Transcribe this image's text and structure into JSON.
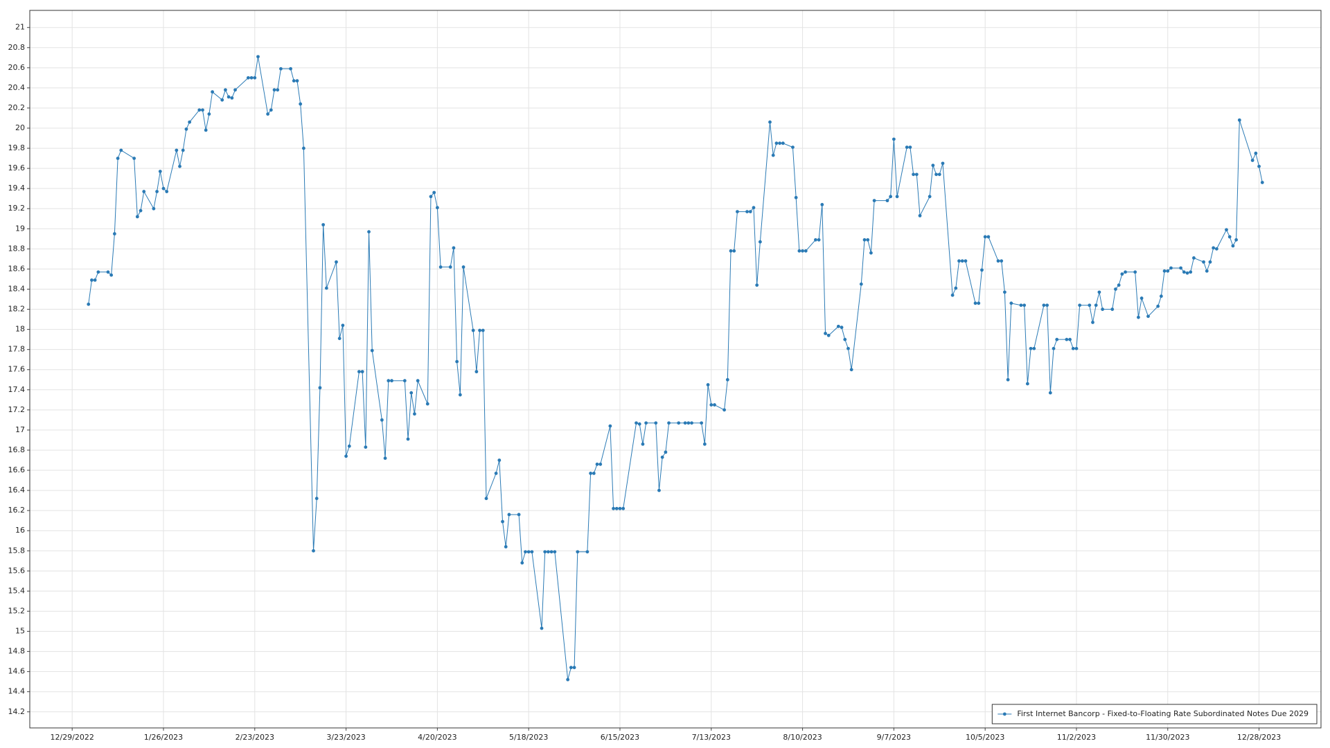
{
  "chart_data": {
    "type": "line",
    "x": [
      "1/3/2023",
      "1/4/2023",
      "1/5/2023",
      "1/6/2023",
      "1/9/2023",
      "1/10/2023",
      "1/11/2023",
      "1/12/2023",
      "1/13/2023",
      "1/17/2023",
      "1/18/2023",
      "1/19/2023",
      "1/20/2023",
      "1/23/2023",
      "1/24/2023",
      "1/25/2023",
      "1/26/2023",
      "1/27/2023",
      "1/30/2023",
      "1/31/2023",
      "2/1/2023",
      "2/2/2023",
      "2/3/2023",
      "2/6/2023",
      "2/7/2023",
      "2/8/2023",
      "2/9/2023",
      "2/10/2023",
      "2/13/2023",
      "2/14/2023",
      "2/15/2023",
      "2/16/2023",
      "2/17/2023",
      "2/21/2023",
      "2/22/2023",
      "2/23/2023",
      "2/24/2023",
      "2/27/2023",
      "2/28/2023",
      "3/1/2023",
      "3/2/2023",
      "3/3/2023",
      "3/6/2023",
      "3/7/2023",
      "3/8/2023",
      "3/9/2023",
      "3/10/2023",
      "3/13/2023",
      "3/14/2023",
      "3/15/2023",
      "3/16/2023",
      "3/17/2023",
      "3/20/2023",
      "3/21/2023",
      "3/22/2023",
      "3/23/2023",
      "3/24/2023",
      "3/27/2023",
      "3/28/2023",
      "3/29/2023",
      "3/30/2023",
      "3/31/2023",
      "4/3/2023",
      "4/4/2023",
      "4/5/2023",
      "4/6/2023",
      "4/10/2023",
      "4/11/2023",
      "4/12/2023",
      "4/13/2023",
      "4/14/2023",
      "4/17/2023",
      "4/18/2023",
      "4/19/2023",
      "4/20/2023",
      "4/21/2023",
      "4/24/2023",
      "4/25/2023",
      "4/26/2023",
      "4/27/2023",
      "4/28/2023",
      "5/1/2023",
      "5/2/2023",
      "5/3/2023",
      "5/4/2023",
      "5/5/2023",
      "5/8/2023",
      "5/9/2023",
      "5/10/2023",
      "5/11/2023",
      "5/12/2023",
      "5/15/2023",
      "5/16/2023",
      "5/17/2023",
      "5/18/2023",
      "5/19/2023",
      "5/22/2023",
      "5/23/2023",
      "5/24/2023",
      "5/25/2023",
      "5/26/2023",
      "5/30/2023",
      "5/31/2023",
      "6/1/2023",
      "6/2/2023",
      "6/5/2023",
      "6/6/2023",
      "6/7/2023",
      "6/8/2023",
      "6/9/2023",
      "6/12/2023",
      "6/13/2023",
      "6/14/2023",
      "6/15/2023",
      "6/16/2023",
      "6/20/2023",
      "6/21/2023",
      "6/22/2023",
      "6/23/2023",
      "6/26/2023",
      "6/27/2023",
      "6/28/2023",
      "6/29/2023",
      "6/30/2023",
      "7/3/2023",
      "7/5/2023",
      "7/6/2023",
      "7/7/2023",
      "7/10/2023",
      "7/11/2023",
      "7/12/2023",
      "7/13/2023",
      "7/14/2023",
      "7/17/2023",
      "7/18/2023",
      "7/19/2023",
      "7/20/2023",
      "7/21/2023",
      "7/24/2023",
      "7/25/2023",
      "7/26/2023",
      "7/27/2023",
      "7/28/2023",
      "7/31/2023",
      "8/1/2023",
      "8/2/2023",
      "8/3/2023",
      "8/4/2023",
      "8/7/2023",
      "8/8/2023",
      "8/9/2023",
      "8/10/2023",
      "8/11/2023",
      "8/14/2023",
      "8/15/2023",
      "8/16/2023",
      "8/17/2023",
      "8/18/2023",
      "8/21/2023",
      "8/22/2023",
      "8/23/2023",
      "8/24/2023",
      "8/25/2023",
      "8/28/2023",
      "8/29/2023",
      "8/30/2023",
      "8/31/2023",
      "9/1/2023",
      "9/5/2023",
      "9/6/2023",
      "9/7/2023",
      "9/8/2023",
      "9/11/2023",
      "9/12/2023",
      "9/13/2023",
      "9/14/2023",
      "9/15/2023",
      "9/18/2023",
      "9/19/2023",
      "9/20/2023",
      "9/21/2023",
      "9/22/2023",
      "9/25/2023",
      "9/26/2023",
      "9/27/2023",
      "9/28/2023",
      "9/29/2023",
      "10/2/2023",
      "10/3/2023",
      "10/4/2023",
      "10/5/2023",
      "10/6/2023",
      "10/9/2023",
      "10/10/2023",
      "10/11/2023",
      "10/12/2023",
      "10/13/2023",
      "10/16/2023",
      "10/17/2023",
      "10/18/2023",
      "10/19/2023",
      "10/20/2023",
      "10/23/2023",
      "10/24/2023",
      "10/25/2023",
      "10/26/2023",
      "10/27/2023",
      "10/30/2023",
      "10/31/2023",
      "11/1/2023",
      "11/2/2023",
      "11/3/2023",
      "11/6/2023",
      "11/7/2023",
      "11/8/2023",
      "11/9/2023",
      "11/10/2023",
      "11/13/2023",
      "11/14/2023",
      "11/15/2023",
      "11/16/2023",
      "11/17/2023",
      "11/20/2023",
      "11/21/2023",
      "11/22/2023",
      "11/24/2023",
      "11/27/2023",
      "11/28/2023",
      "11/29/2023",
      "11/30/2023",
      "12/1/2023",
      "12/4/2023",
      "12/5/2023",
      "12/6/2023",
      "12/7/2023",
      "12/8/2023",
      "12/11/2023",
      "12/12/2023",
      "12/13/2023",
      "12/14/2023",
      "12/15/2023",
      "12/18/2023",
      "12/19/2023",
      "12/20/2023",
      "12/21/2023",
      "12/22/2023",
      "12/26/2023",
      "12/27/2023",
      "12/28/2023",
      "12/29/2023"
    ],
    "series": [
      {
        "name": "First Internet Bancorp - Fixed-to-Floating Rate Subordinated Notes Due 2029",
        "color": "#2a7ab5",
        "values": [
          18.25,
          18.49,
          18.49,
          18.57,
          18.57,
          18.54,
          18.95,
          19.7,
          19.78,
          19.7,
          19.12,
          19.18,
          19.37,
          19.2,
          19.37,
          19.57,
          19.4,
          19.37,
          19.78,
          19.62,
          19.78,
          19.99,
          20.06,
          20.18,
          20.18,
          19.98,
          20.14,
          20.36,
          20.28,
          20.38,
          20.31,
          20.3,
          20.38,
          20.5,
          20.5,
          20.5,
          20.71,
          20.14,
          20.18,
          20.38,
          20.38,
          20.59,
          20.59,
          20.47,
          20.47,
          20.24,
          19.8,
          15.8,
          16.32,
          17.42,
          19.04,
          18.41,
          18.67,
          17.91,
          18.04,
          16.74,
          16.84,
          17.58,
          17.58,
          16.83,
          18.97,
          17.79,
          17.1,
          16.72,
          17.49,
          17.49,
          17.49,
          16.91,
          17.37,
          17.16,
          17.49,
          17.26,
          19.32,
          19.36,
          19.21,
          18.62,
          18.62,
          18.81,
          17.68,
          17.35,
          18.62,
          17.99,
          17.58,
          17.99,
          17.99,
          16.32,
          16.57,
          16.7,
          16.09,
          15.84,
          16.16,
          16.16,
          15.68,
          15.79,
          15.79,
          15.79,
          15.03,
          15.79,
          15.79,
          15.79,
          15.79,
          14.52,
          14.64,
          14.64,
          15.79,
          15.79,
          16.57,
          16.57,
          16.66,
          16.66,
          17.04,
          16.22,
          16.22,
          16.22,
          16.22,
          17.07,
          17.06,
          16.86,
          17.07,
          17.07,
          16.4,
          16.73,
          16.78,
          17.07,
          17.07,
          17.07,
          17.07,
          17.07,
          17.07,
          16.86,
          17.45,
          17.25,
          17.25,
          17.2,
          17.5,
          18.78,
          18.78,
          19.17,
          19.17,
          19.17,
          19.21,
          18.44,
          18.87,
          20.06,
          19.73,
          19.85,
          19.85,
          19.85,
          19.81,
          19.31,
          18.78,
          18.78,
          18.78,
          18.89,
          18.89,
          19.24,
          17.96,
          17.94,
          18.03,
          18.02,
          17.9,
          17.81,
          17.6,
          18.45,
          18.89,
          18.89,
          18.76,
          19.28,
          19.28,
          19.32,
          19.89,
          19.32,
          19.81,
          19.81,
          19.54,
          19.54,
          19.13,
          19.32,
          19.63,
          19.54,
          19.54,
          19.65,
          18.34,
          18.41,
          18.68,
          18.68,
          18.68,
          18.26,
          18.26,
          18.59,
          18.92,
          18.92,
          18.68,
          18.68,
          18.37,
          17.5,
          18.26,
          18.24,
          18.24,
          17.46,
          17.81,
          17.81,
          18.24,
          18.24,
          17.37,
          17.81,
          17.9,
          17.9,
          17.9,
          17.81,
          17.81,
          18.24,
          18.24,
          18.07,
          18.24,
          18.37,
          18.2,
          18.2,
          18.4,
          18.44,
          18.55,
          18.57,
          18.57,
          18.12,
          18.31,
          18.13,
          18.23,
          18.33,
          18.58,
          18.58,
          18.61,
          18.61,
          18.57,
          18.56,
          18.57,
          18.71,
          18.67,
          18.58,
          18.67,
          18.81,
          18.8,
          18.99,
          18.92,
          18.83,
          18.89,
          20.08,
          19.68,
          19.75,
          19.62,
          19.46
        ]
      }
    ],
    "xlim": [
      "12/16/2022",
      "1/16/2024"
    ],
    "xticks": [
      "12/29/2022",
      "1/26/2023",
      "2/23/2023",
      "3/23/2023",
      "4/20/2023",
      "5/18/2023",
      "6/15/2023",
      "7/13/2023",
      "8/10/2023",
      "9/7/2023",
      "10/5/2023",
      "11/2/2023",
      "11/30/2023",
      "12/28/2023"
    ],
    "ylim": [
      14.04,
      21.17
    ],
    "yticks": [
      14.2,
      14.4,
      14.6,
      14.8,
      15,
      15.2,
      15.4,
      15.6,
      15.8,
      16,
      16.2,
      16.4,
      16.6,
      16.8,
      17,
      17.2,
      17.4,
      17.6,
      17.8,
      18,
      18.2,
      18.4,
      18.6,
      18.8,
      19,
      19.2,
      19.4,
      19.6,
      19.8,
      20,
      20.2,
      20.4,
      20.6,
      20.8,
      21
    ],
    "grid": true,
    "legend": "bottom-right"
  }
}
